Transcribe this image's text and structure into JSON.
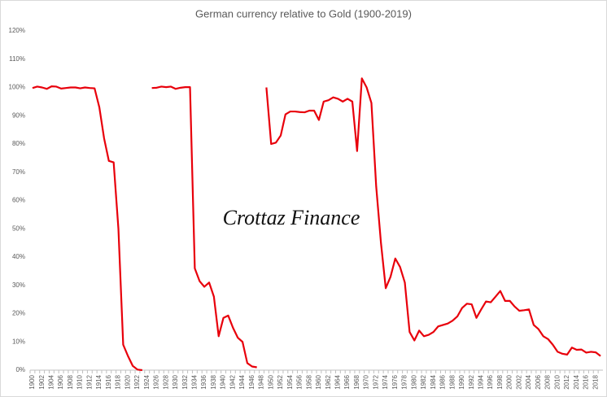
{
  "chart_data": {
    "type": "line",
    "title": "German currency relative to Gold (1900-2019)",
    "annotation": "Crottaz Finance",
    "categories": [
      "1900",
      null,
      "1902",
      null,
      "1904",
      null,
      "1906",
      null,
      "1908",
      null,
      "1910",
      null,
      "1912",
      null,
      "1914",
      null,
      "1916",
      null,
      "1918",
      null,
      "1920",
      null,
      "1922",
      null,
      "1924",
      null,
      "1926",
      null,
      "1928",
      null,
      "1930",
      null,
      "1932",
      null,
      "1934",
      null,
      "1936",
      null,
      "1938",
      null,
      "1940",
      null,
      "1942",
      null,
      "1944",
      null,
      "1946",
      null,
      "1948",
      null,
      "1950",
      null,
      "1952",
      null,
      "1954",
      null,
      "1956",
      null,
      "1958",
      null,
      "1960",
      null,
      "1962",
      null,
      "1964",
      null,
      "1966",
      null,
      "1968",
      null,
      "1970",
      null,
      "1972",
      null,
      "1974",
      null,
      "1976",
      null,
      "1978",
      null,
      "1980",
      null,
      "1982",
      null,
      "1984",
      null,
      "1986",
      null,
      "1988",
      null,
      "1990",
      null,
      "1992",
      null,
      "1994",
      null,
      "1996",
      null,
      "1998",
      null,
      "2000",
      null,
      "2002",
      null,
      "2004",
      null,
      "2006",
      null,
      "2008",
      null,
      "2010",
      null,
      "2012",
      null,
      "2014",
      null,
      "2016",
      null,
      "2018",
      null
    ],
    "series": [
      {
        "color": "#e8000b",
        "values": [
          99.8,
          100.3,
          100,
          99.5,
          100.4,
          100.3,
          99.6,
          99.8,
          100,
          100,
          99.7,
          100,
          99.8,
          99.7,
          93,
          82,
          74,
          73.5,
          50,
          9,
          5,
          1.5,
          0.2,
          0,
          null,
          99.8,
          99.9,
          100.3,
          100.1,
          100.3,
          99.5,
          99.9,
          100.1,
          100.1,
          36,
          31.5,
          29.5,
          31,
          26,
          12,
          18.5,
          19.3,
          15,
          11.5,
          10,
          2.5,
          1.3,
          1,
          null,
          100,
          80,
          80.5,
          83,
          90.5,
          91.5,
          91.5,
          91.3,
          91.2,
          91.8,
          91.8,
          88.5,
          95,
          95.5,
          96.5,
          96,
          95,
          96,
          95,
          77.5,
          103.2,
          100,
          94.5,
          65,
          45,
          29,
          33,
          39.5,
          36.5,
          31,
          13.5,
          10.5,
          14,
          12,
          12.5,
          13.5,
          15.5,
          16,
          16.5,
          17.5,
          19,
          22,
          23.5,
          23.3,
          18.5,
          21.5,
          24.3,
          24,
          26,
          28,
          24.5,
          24.5,
          22.5,
          21,
          21.2,
          21.5,
          16,
          14.5,
          12,
          11,
          9,
          6.5,
          5.8,
          5.5,
          8,
          7.2,
          7.3,
          6.2,
          6.5,
          6.3,
          5
        ]
      }
    ],
    "ylim": [
      0,
      120
    ],
    "yticks": [
      {
        "value": 0,
        "label": "0%"
      },
      {
        "value": 10,
        "label": "10%"
      },
      {
        "value": 20,
        "label": "20%"
      },
      {
        "value": 30,
        "label": "30%"
      },
      {
        "value": 40,
        "label": "40%"
      },
      {
        "value": 50,
        "label": "50%"
      },
      {
        "value": 60,
        "label": "60%"
      },
      {
        "value": 70,
        "label": "70%"
      },
      {
        "value": 80,
        "label": "80%"
      },
      {
        "value": 90,
        "label": "90%"
      },
      {
        "value": 100,
        "label": "100%"
      },
      {
        "value": 110,
        "label": "110%"
      },
      {
        "value": 120,
        "label": "120%"
      }
    ],
    "grid": false
  }
}
